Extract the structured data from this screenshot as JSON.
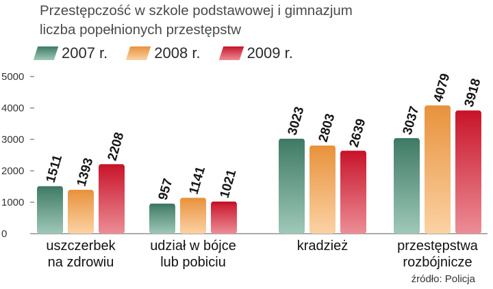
{
  "chart_data": {
    "type": "bar",
    "title": "Przestępczość w szkole podstawowej i gimnazjum",
    "subtitle": "liczba popełnionych przestępstw",
    "categories": [
      [
        "uszczerbek",
        "na zdrowiu"
      ],
      [
        "udział w bójce",
        "lub pobiciu"
      ],
      [
        "kradzież"
      ],
      [
        "przestępstwa",
        "rozbójnicze"
      ]
    ],
    "series": [
      {
        "name": "2007 r.",
        "values": [
          1511,
          957,
          3023,
          3037
        ],
        "color_top": "#3e7a64",
        "color_bottom": "#9fc8b8"
      },
      {
        "name": "2008 r.",
        "values": [
          1393,
          1141,
          2803,
          4079
        ],
        "color_top": "#e8923c",
        "color_bottom": "#fbd2a4"
      },
      {
        "name": "2009 r.",
        "values": [
          2208,
          1021,
          2639,
          3918
        ],
        "color_top": "#c8142a",
        "color_bottom": "#ec8d96"
      }
    ],
    "yticks": [
      0,
      1000,
      2000,
      3000,
      4000,
      5000
    ],
    "ylim": [
      0,
      5000
    ],
    "grid": false,
    "legend_position": "top-left",
    "source": "źródło: Policja"
  }
}
